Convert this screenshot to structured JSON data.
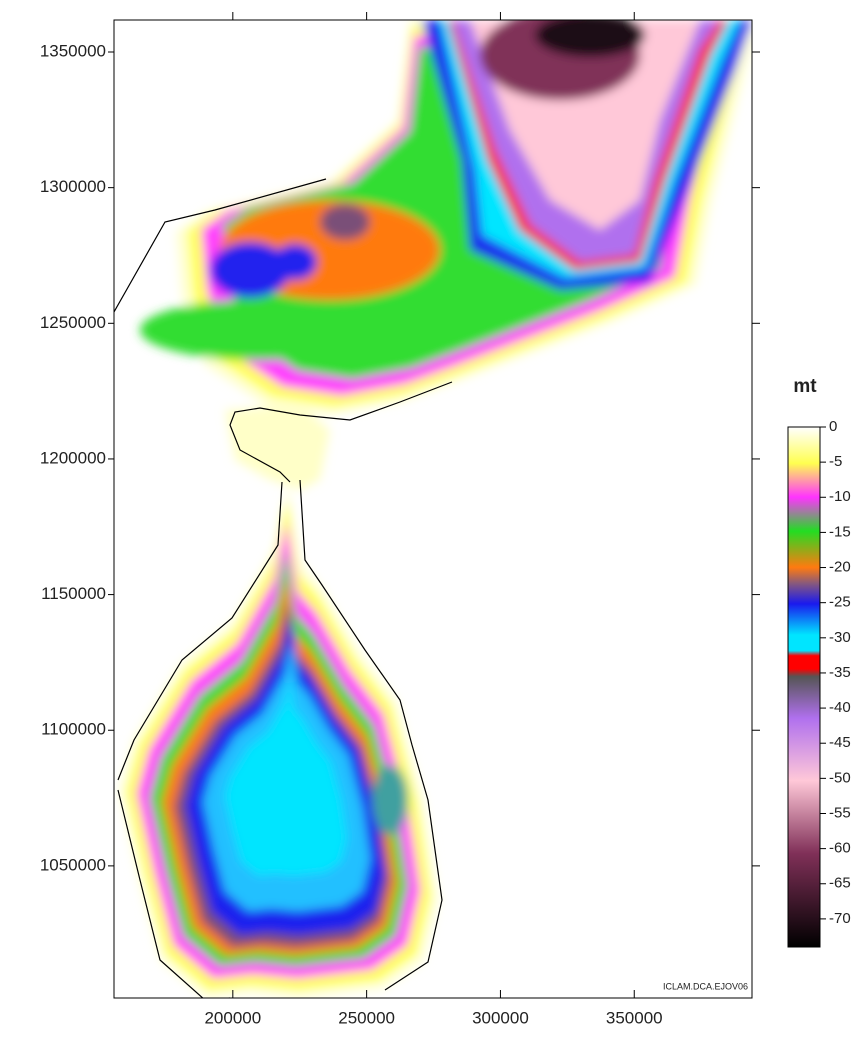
{
  "map": {
    "xlim": [
      155600,
      394000
    ],
    "ylim": [
      1001300,
      1361800
    ],
    "xticks": [
      200000,
      250000,
      300000,
      350000
    ],
    "yticks": [
      1050000,
      1100000,
      1150000,
      1200000,
      1250000,
      1300000,
      1350000
    ],
    "credit": "ICLAM.DCA.EJOV06"
  },
  "colorbar": {
    "title": "mt",
    "lim": [
      0,
      -74
    ],
    "ticks": [
      0,
      -5,
      -10,
      -15,
      -20,
      -25,
      -30,
      -35,
      -40,
      -45,
      -50,
      -55,
      -60,
      -65,
      -70
    ]
  }
}
